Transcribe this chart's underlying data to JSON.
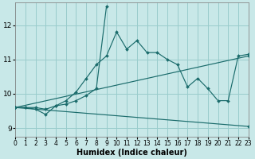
{
  "xlabel": "Humidex (Indice chaleur)",
  "bg_color": "#c8e8e8",
  "grid_color": "#99cccc",
  "line_color": "#1a6b6b",
  "xlim": [
    0,
    23
  ],
  "ylim": [
    8.75,
    12.65
  ],
  "xticks": [
    0,
    1,
    2,
    3,
    4,
    5,
    6,
    7,
    8,
    9,
    10,
    11,
    12,
    13,
    14,
    15,
    16,
    17,
    18,
    19,
    20,
    21,
    22,
    23
  ],
  "yticks": [
    9,
    10,
    11,
    12
  ],
  "series": [
    {
      "x": [
        0,
        1,
        2,
        3,
        4,
        5,
        6,
        7,
        8,
        9,
        10,
        11,
        12,
        13,
        14,
        15,
        16,
        17,
        18,
        19,
        20,
        21,
        22,
        23
      ],
      "y": [
        9.6,
        9.6,
        9.6,
        9.55,
        9.65,
        9.8,
        10.05,
        10.45,
        10.85,
        11.1,
        11.8,
        11.3,
        11.55,
        11.2,
        11.2,
        11.0,
        10.85,
        10.2,
        10.45,
        10.15,
        9.8,
        9.8,
        11.1,
        11.15
      ]
    },
    {
      "x": [
        0,
        1,
        2,
        3,
        4,
        5,
        6,
        7,
        8,
        9
      ],
      "y": [
        9.6,
        9.6,
        9.55,
        9.4,
        9.65,
        9.7,
        9.8,
        9.95,
        10.15,
        12.55
      ]
    },
    {
      "x": [
        0,
        23
      ],
      "y": [
        9.6,
        11.1
      ]
    },
    {
      "x": [
        0,
        23
      ],
      "y": [
        9.6,
        9.05
      ]
    }
  ]
}
